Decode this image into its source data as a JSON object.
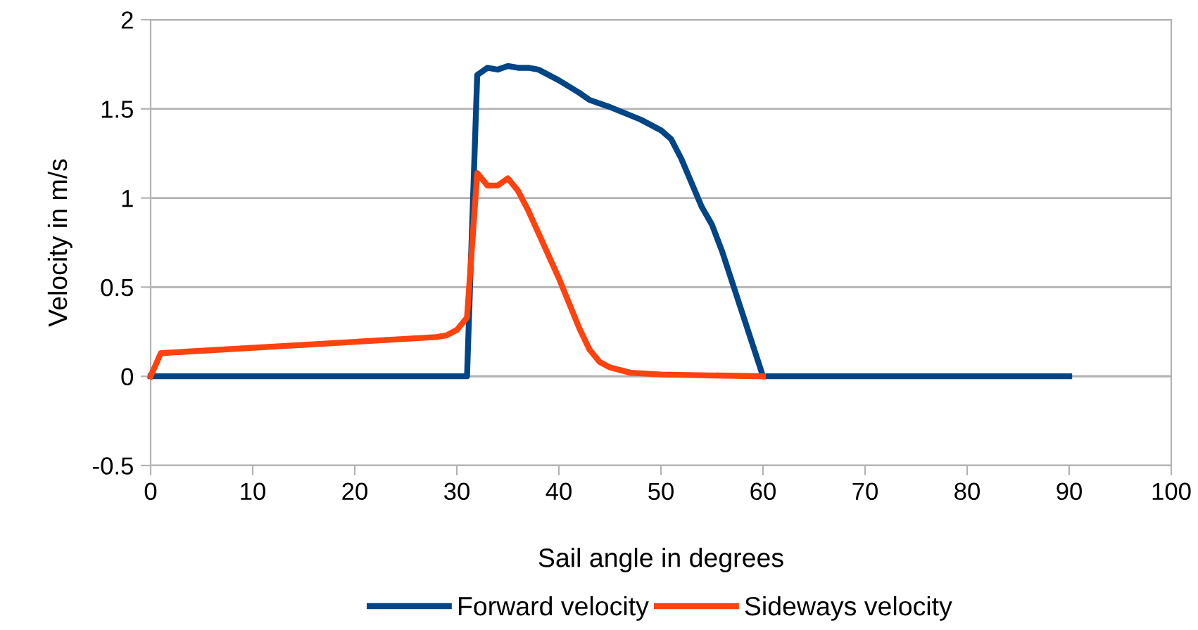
{
  "chart_data": {
    "type": "line",
    "xlabel": "Sail angle in degrees",
    "ylabel": "Velocity in m/s",
    "xlim": [
      0,
      100
    ],
    "xticks": [
      0,
      10,
      20,
      30,
      40,
      50,
      60,
      70,
      80,
      90,
      100
    ],
    "ylim": [
      -0.5,
      2
    ],
    "yticks": [
      -0.5,
      0,
      0.5,
      1,
      1.5,
      2
    ],
    "grid": "y",
    "legend": "bottom",
    "marker": "none",
    "line_style": "solid",
    "series": [
      {
        "name": "Forward velocity",
        "color": "#004586",
        "x": [
          0,
          31,
          32,
          33,
          34,
          35,
          36,
          37,
          38,
          40,
          42,
          43,
          45,
          48,
          50,
          51,
          52,
          54,
          55,
          56,
          58,
          60,
          90
        ],
        "values": [
          0,
          0,
          1.69,
          1.73,
          1.72,
          1.74,
          1.73,
          1.73,
          1.72,
          1.66,
          1.59,
          1.55,
          1.51,
          1.44,
          1.38,
          1.33,
          1.22,
          0.95,
          0.85,
          0.7,
          0.35,
          0,
          0
        ]
      },
      {
        "name": "Sideways velocity",
        "color": "#ff420e",
        "x": [
          0,
          1,
          28,
          29,
          30,
          31,
          32,
          33,
          34,
          35,
          36,
          37,
          40,
          42,
          43,
          44,
          45,
          47,
          50,
          60
        ],
        "values": [
          0,
          0.13,
          0.22,
          0.23,
          0.26,
          0.33,
          1.14,
          1.07,
          1.07,
          1.11,
          1.04,
          0.93,
          0.55,
          0.27,
          0.15,
          0.08,
          0.05,
          0.02,
          0.01,
          0
        ]
      }
    ]
  }
}
